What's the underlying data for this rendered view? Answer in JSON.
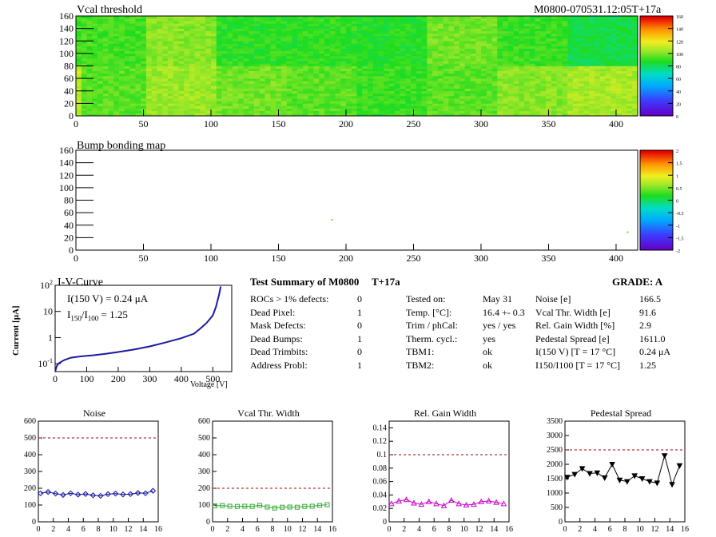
{
  "header": {
    "module_id": "M0800-070531.12:05T+17a"
  },
  "vcal_map": {
    "title": "Vcal threshold",
    "x_ticks": [
      "0",
      "50",
      "100",
      "150",
      "200",
      "250",
      "300",
      "350",
      "400"
    ],
    "y_ticks": [
      "0",
      "20",
      "40",
      "60",
      "80",
      "100",
      "120",
      "140",
      "160"
    ],
    "scale_ticks": [
      "160",
      "140",
      "120",
      "100",
      "80",
      "60",
      "40",
      "20",
      "0"
    ]
  },
  "bump_map": {
    "title": "Bump bonding map",
    "x_ticks": [
      "0",
      "50",
      "100",
      "150",
      "200",
      "250",
      "300",
      "350",
      "400"
    ],
    "y_ticks": [
      "0",
      "20",
      "40",
      "60",
      "80",
      "100",
      "120",
      "140",
      "160"
    ],
    "scale_ticks": [
      "2",
      "1.5",
      "1",
      "0.5",
      "0",
      "-0.5",
      "-1",
      "-1.5",
      "-2"
    ]
  },
  "iv_curve": {
    "title": "I-V-Curve",
    "ylabel": "Current [μA]",
    "xlabel": "Voltage [V]",
    "x_ticks": [
      "0",
      "100",
      "200",
      "300",
      "400",
      "500"
    ],
    "ann_line1": "I(150 V) = 0.24 μA",
    "ann_line2_prefix": "I",
    "ann_line2_sub1": "150",
    "ann_line2_mid": "/I",
    "ann_line2_sub2": "100",
    "ann_line2_value": " = 1.25"
  },
  "summary": {
    "title": "Test Summary of M0800",
    "tag": "T+17a",
    "grade": "GRADE:  A",
    "col1": [
      {
        "label": "ROCs > 1% defects:",
        "value": "0"
      },
      {
        "label": "Dead Pixel:",
        "value": "1"
      },
      {
        "label": "Mask Defects:",
        "value": "0"
      },
      {
        "label": "Dead Bumps:",
        "value": "1"
      },
      {
        "label": "Dead Trimbits:",
        "value": "0"
      },
      {
        "label": "Address Probl:",
        "value": "1"
      }
    ],
    "col2": [
      {
        "label": "Tested on:",
        "value": "May 31"
      },
      {
        "label": "Temp. [°C]:",
        "value": "16.4 +- 0.3"
      },
      {
        "label": "Trim / phCal:",
        "value": "yes / yes"
      },
      {
        "label": "Therm. cycl.:",
        "value": "yes"
      },
      {
        "label": "TBM1:",
        "value": "ok"
      },
      {
        "label": "TBM2:",
        "value": "ok"
      }
    ],
    "col3": [
      {
        "label": "Noise [e]",
        "value": "166.5"
      },
      {
        "label": "Vcal Thr. Width [e]",
        "value": "91.6"
      },
      {
        "label": "Rel. Gain Width [%]",
        "value": "2.9"
      },
      {
        "label": "Pedestal Spread [e]",
        "value": "1611.0"
      },
      {
        "label": "I(150 V) [T = 17 °C]",
        "value": "0.24 μA"
      },
      {
        "label": "I150/I100  [T = 17 °C]",
        "value": "1.25"
      }
    ]
  },
  "chart_data": [
    {
      "type": "heatmap",
      "title": "Vcal threshold",
      "xlim": [
        0,
        416
      ],
      "ylim": [
        0,
        160
      ],
      "zlim": [
        0,
        160
      ],
      "colorscale": "rainbow",
      "typical_value": 100,
      "note_values": [
        100
      ]
    },
    {
      "type": "heatmap",
      "title": "Bump bonding map",
      "xlim": [
        0,
        416
      ],
      "ylim": [
        0,
        160
      ],
      "zlim": [
        -2,
        2
      ],
      "points": [
        {
          "x": 189,
          "y": 50,
          "z": 0.5
        },
        {
          "x": 408,
          "y": 30,
          "z": 0.5
        }
      ]
    },
    {
      "type": "line",
      "title": "I-V-Curve",
      "xlabel": "Voltage [V]",
      "ylabel": "Current [μA]",
      "xlim": [
        0,
        560
      ],
      "ylim": [
        0.05,
        100
      ],
      "yscale": "log",
      "x": [
        0,
        5,
        10,
        20,
        30,
        50,
        80,
        120,
        160,
        200,
        250,
        300,
        350,
        400,
        440,
        460,
        480,
        500,
        510,
        520,
        525
      ],
      "y": [
        0.05,
        0.08,
        0.1,
        0.12,
        0.14,
        0.17,
        0.19,
        0.21,
        0.24,
        0.28,
        0.35,
        0.46,
        0.65,
        0.95,
        1.4,
        2.2,
        3.6,
        7,
        15,
        45,
        90
      ]
    },
    {
      "type": "line",
      "title": "Noise",
      "xlim": [
        0,
        16
      ],
      "ylim": [
        0,
        600
      ],
      "threshold": 500,
      "x_ticks": [
        "0",
        "2",
        "4",
        "6",
        "8",
        "10",
        "12",
        "14",
        "16"
      ],
      "y_ticks": [
        "0",
        "100",
        "200",
        "300",
        "400",
        "500",
        "600"
      ],
      "x": [
        0,
        1,
        2,
        3,
        4,
        5,
        6,
        7,
        8,
        9,
        10,
        11,
        12,
        13,
        14,
        15
      ],
      "y": [
        170,
        178,
        168,
        160,
        170,
        162,
        166,
        158,
        155,
        165,
        168,
        163,
        165,
        172,
        170,
        185
      ]
    },
    {
      "type": "line",
      "title": "Vcal Thr. Width",
      "xlim": [
        0,
        16
      ],
      "ylim": [
        0,
        600
      ],
      "threshold": 200,
      "x_ticks": [
        "0",
        "2",
        "4",
        "6",
        "8",
        "10",
        "12",
        "14",
        "16"
      ],
      "y_ticks": [
        "0",
        "100",
        "200",
        "300",
        "400",
        "500",
        "600"
      ],
      "x": [
        0,
        1,
        2,
        3,
        4,
        5,
        6,
        7,
        8,
        9,
        10,
        11,
        12,
        13,
        14,
        15
      ],
      "y": [
        95,
        97,
        93,
        92,
        93,
        92,
        98,
        88,
        82,
        87,
        88,
        87,
        92,
        93,
        98,
        102
      ]
    },
    {
      "type": "line",
      "title": "Rel. Gain Width",
      "xlim": [
        0,
        16
      ],
      "ylim": [
        0,
        0.15
      ],
      "threshold": 0.1,
      "x_ticks": [
        "0",
        "2",
        "4",
        "6",
        "8",
        "10",
        "12",
        "14",
        "16"
      ],
      "y_ticks": [
        "0",
        "0.02",
        "0.04",
        "0.06",
        "0.08",
        "0.1",
        "0.12",
        "0.14"
      ],
      "x": [
        0,
        1,
        2,
        3,
        4,
        5,
        6,
        7,
        8,
        9,
        10,
        11,
        12,
        13,
        14,
        15
      ],
      "y": [
        0.027,
        0.031,
        0.033,
        0.028,
        0.026,
        0.03,
        0.027,
        0.024,
        0.032,
        0.027,
        0.025,
        0.026,
        0.03,
        0.031,
        0.029,
        0.027
      ]
    },
    {
      "type": "line",
      "title": "Pedestal Spread",
      "xlim": [
        0,
        16
      ],
      "ylim": [
        0,
        3500
      ],
      "threshold": 2500,
      "x_ticks": [
        "0",
        "2",
        "4",
        "6",
        "8",
        "10",
        "12",
        "14",
        "16"
      ],
      "y_ticks": [
        "0",
        "500",
        "1000",
        "1500",
        "2000",
        "2500",
        "3000",
        "3500"
      ],
      "x": [
        0,
        1,
        2,
        3,
        4,
        5,
        6,
        7,
        8,
        9,
        10,
        11,
        12,
        13,
        14,
        15
      ],
      "y": [
        1550,
        1650,
        1850,
        1680,
        1700,
        1530,
        2000,
        1450,
        1400,
        1600,
        1500,
        1400,
        1350,
        2300,
        1300,
        1950
      ]
    }
  ]
}
